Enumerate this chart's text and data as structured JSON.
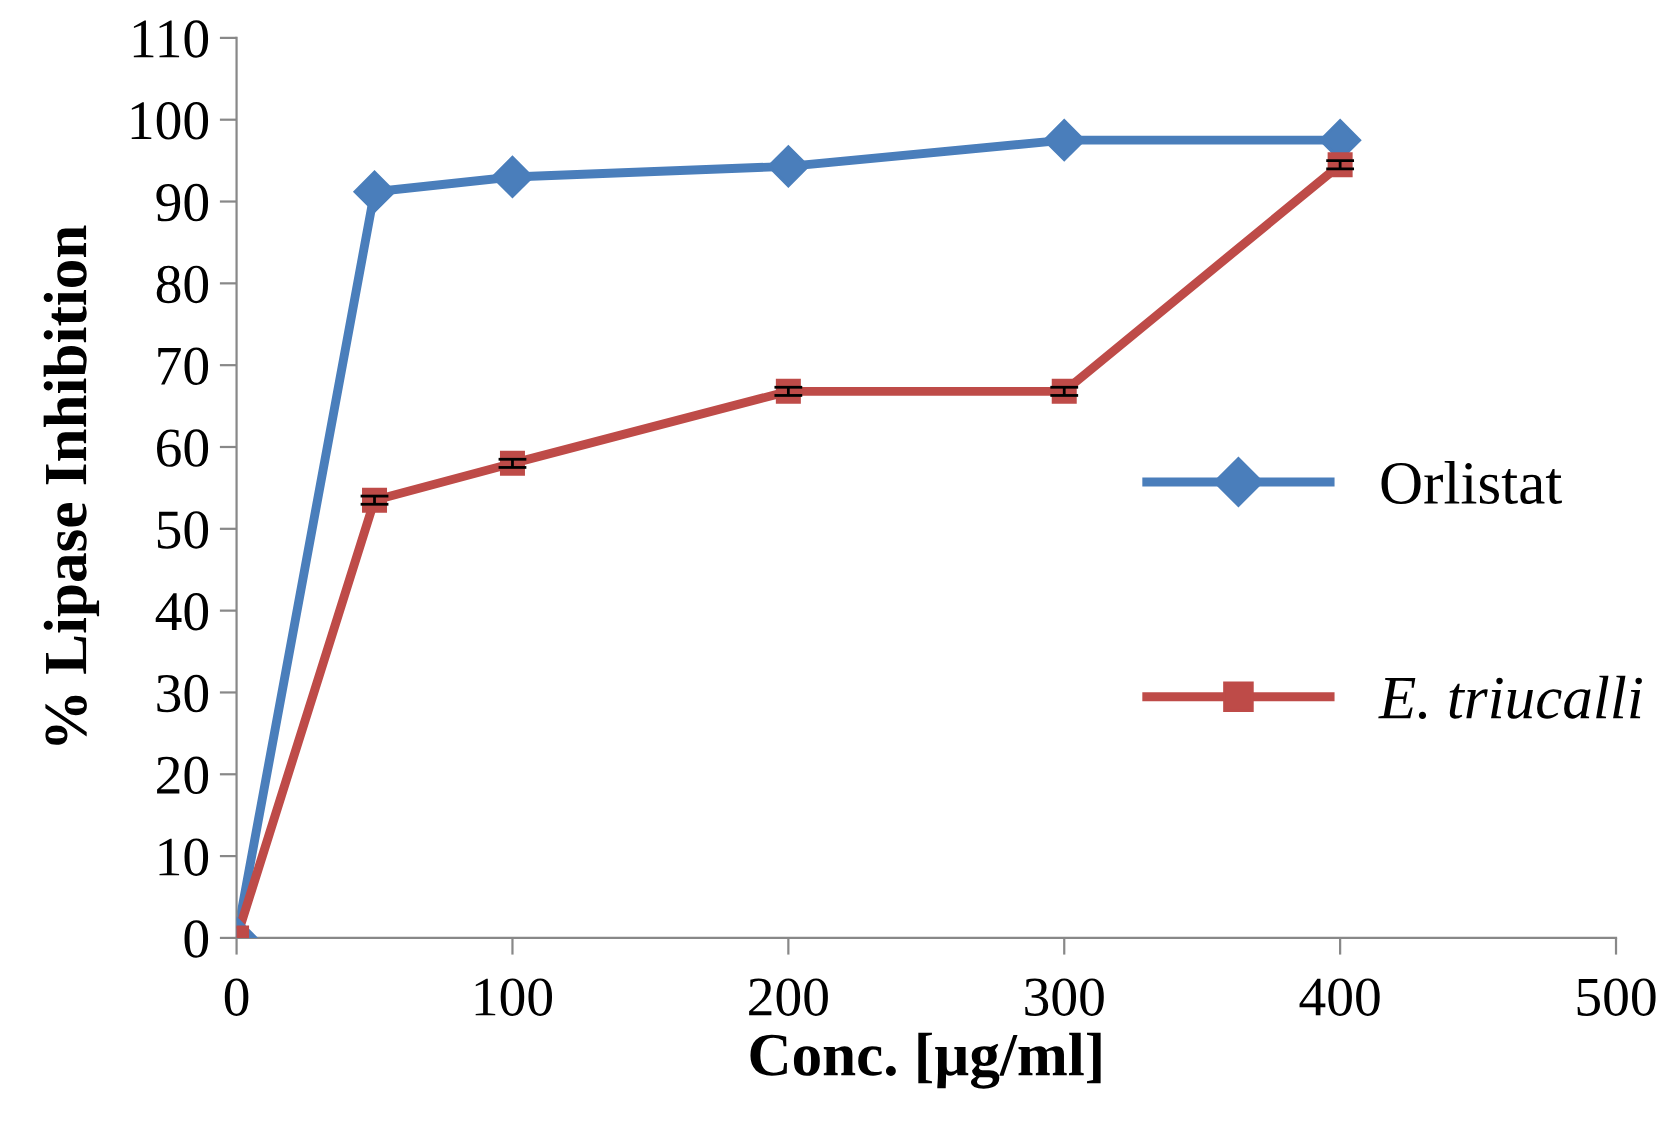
{
  "chart_data": {
    "type": "line",
    "xlabel": "Conc. [µg/ml]",
    "ylabel": "% Lipase Inhibition",
    "x": [
      0,
      50,
      100,
      200,
      300,
      400
    ],
    "series": [
      {
        "name": "Orlistat",
        "color": "#4a7ebb",
        "marker": "diamond",
        "values": [
          0,
          91.2,
          93.0,
          94.3,
          97.5,
          97.5
        ]
      },
      {
        "name": "E. triucalli",
        "color": "#be4b48",
        "marker": "square",
        "values": [
          0,
          53.5,
          58.0,
          66.8,
          66.8,
          94.5
        ],
        "errors": [
          null,
          0.5,
          0.5,
          0.5,
          0.5,
          0.5
        ]
      }
    ],
    "xlim": [
      0,
      500
    ],
    "xticks": [
      0,
      100,
      200,
      300,
      400,
      500
    ],
    "ylim": [
      0,
      110
    ],
    "yticks": [
      0,
      10,
      20,
      30,
      40,
      50,
      60,
      70,
      80,
      90,
      100,
      110
    ],
    "legend": "right",
    "grid": false,
    "line_style": "solid"
  }
}
